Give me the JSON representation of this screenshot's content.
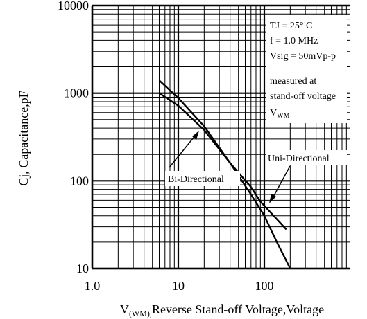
{
  "chart_data": {
    "type": "line",
    "title": "",
    "xlabel": "V(WM),Reverse Stand-off Voltage,Voltage",
    "xlabel_main": "V",
    "xlabel_sub": "(WM),",
    "xlabel_rest": "Reverse Stand-off Voltage,Voltage",
    "ylabel": "Cj, Capacitance,pF",
    "x_scale": "log",
    "y_scale": "log",
    "xlim": [
      1,
      1000
    ],
    "ylim": [
      10,
      10000
    ],
    "grid": true,
    "x_ticks": [
      {
        "value": 1,
        "label": "1.0"
      },
      {
        "value": 10,
        "label": "10"
      },
      {
        "value": 100,
        "label": "100"
      }
    ],
    "y_ticks": [
      {
        "value": 10,
        "label": "10"
      },
      {
        "value": 100,
        "label": "100"
      },
      {
        "value": 1000,
        "label": "1000"
      },
      {
        "value": 10000,
        "label": "10000"
      }
    ],
    "series": [
      {
        "name": "Uni-Directional",
        "x": [
          6,
          10,
          20,
          40,
          70,
          90,
          120,
          180
        ],
        "y": [
          1000,
          720,
          380,
          160,
          85,
          58,
          43,
          28
        ]
      },
      {
        "name": "Bi-Directional",
        "x": [
          6,
          10,
          20,
          40,
          70,
          100,
          140,
          200
        ],
        "y": [
          1400,
          880,
          420,
          160,
          70,
          40,
          20,
          10
        ]
      }
    ],
    "annotations": {
      "conditions": {
        "tj": "TJ = 25°  C",
        "freq": "f = 1.0 MHz",
        "vsig": "Vsig = 50mVp-p",
        "measured_1": "measured at",
        "measured_2": "stand-off voltage",
        "vwm_main": "V",
        "vwm_sub": "WM"
      },
      "uni_label": "Uni-Directional",
      "bi_label": "Bi-Directional"
    }
  }
}
